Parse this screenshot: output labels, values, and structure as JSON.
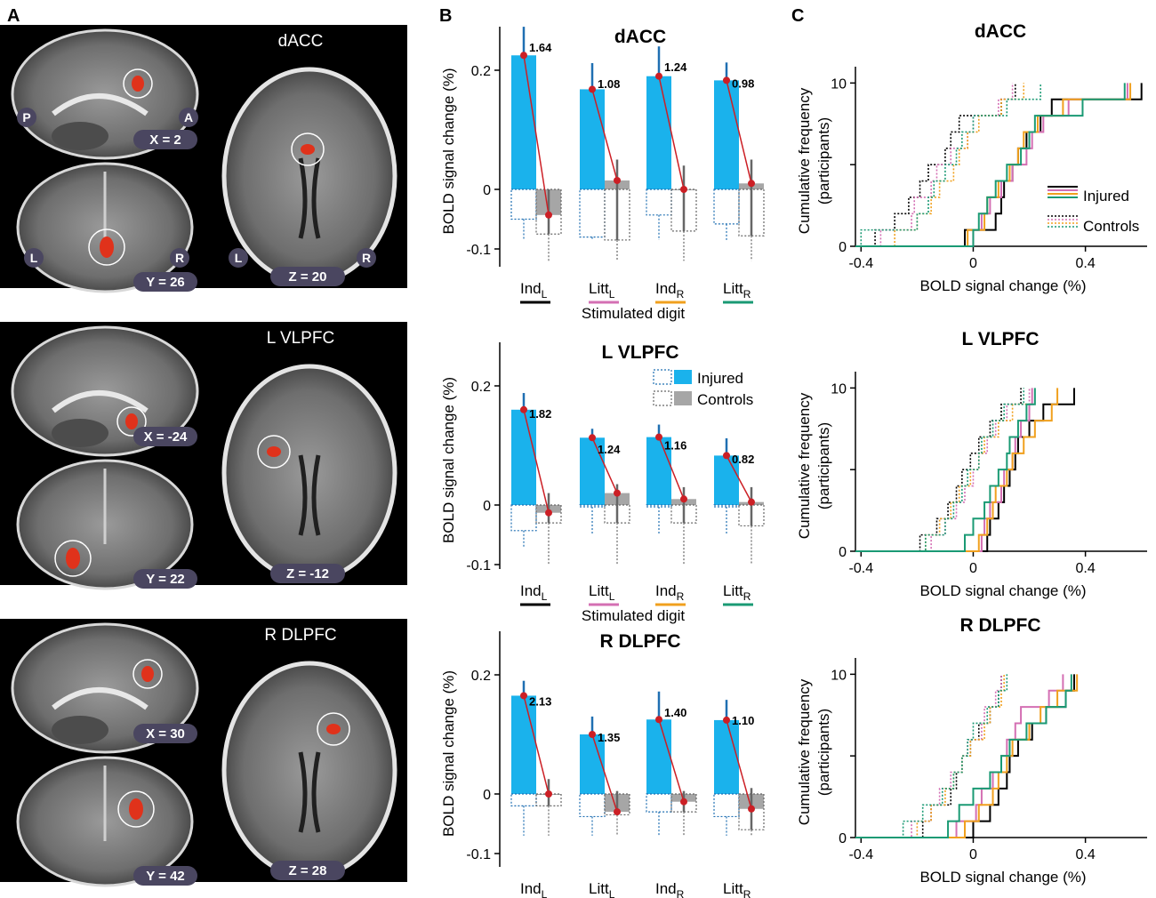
{
  "panel_letters": [
    "A",
    "B",
    "C"
  ],
  "colors": {
    "injured_bar": "#1ab2ec",
    "control_bar": "#a6a6a6",
    "mean_line": "#cc1f25",
    "err_injured": "#1f6fb2",
    "err_control": "#666666",
    "digit_IndL": "#000000",
    "digit_LittL": "#d46fb3",
    "digit_IndR": "#f0a01e",
    "digit_LittR": "#1a9a74",
    "brain_bg": "#000000",
    "activation": "#e0321b"
  },
  "panel_a": {
    "orientation": {
      "posterior": "P",
      "anterior": "A",
      "left": "L",
      "right": "R"
    },
    "regions": [
      {
        "name": "dACC",
        "sagittal_coord": "X = 2",
        "coronal_coord": "Y = 26",
        "axial_coord": "Z = 20"
      },
      {
        "name": "L VLPFC",
        "sagittal_coord": "X = -24",
        "coronal_coord": "Y = 22",
        "axial_coord": "Z = -12"
      },
      {
        "name": "R DLPFC",
        "sagittal_coord": "X = 30",
        "coronal_coord": "Y = 42",
        "axial_coord": "Z = 28"
      }
    ]
  },
  "chart_data": [
    {
      "panel": "B",
      "type": "bar",
      "title": "dACC",
      "ylabel": "BOLD signal change (%)",
      "xlabel": "Stimulated digit",
      "ylim": [
        -0.12,
        0.27
      ],
      "yticks": [
        -0.1,
        0,
        0.2
      ],
      "ytick_labels": [
        "-0.1",
        "0",
        "0.2"
      ],
      "categories": [
        {
          "base": "Ind",
          "sub": "L"
        },
        {
          "base": "Litt",
          "sub": "L"
        },
        {
          "base": "Ind",
          "sub": "R"
        },
        {
          "base": "Litt",
          "sub": "R"
        }
      ],
      "series": [
        {
          "name": "Injured",
          "values": [
            0.225,
            0.168,
            0.19,
            0.183
          ],
          "neg": [
            -0.05,
            -0.08,
            -0.043,
            -0.058
          ],
          "err_top": [
            0.273,
            0.212,
            0.24,
            0.213
          ],
          "err_bottom": [
            -0.085,
            -0.085,
            -0.085,
            -0.085
          ]
        },
        {
          "name": "Controls",
          "values": [
            -0.043,
            0.015,
            0.0,
            0.01
          ],
          "neg": [
            -0.075,
            -0.085,
            -0.07,
            -0.078
          ],
          "err_top": [
            0.0,
            0.05,
            0.04,
            0.05
          ],
          "err_bottom": [
            -0.12,
            -0.12,
            -0.12,
            -0.12
          ]
        }
      ],
      "mean_labels": [
        "1.64",
        "1.08",
        "1.24",
        "0.98"
      ]
    },
    {
      "panel": "B",
      "type": "bar",
      "title": "L VLPFC",
      "ylabel": "BOLD signal change (%)",
      "xlabel": "Stimulated digit",
      "ylim": [
        -0.12,
        0.27
      ],
      "yticks": [
        -0.1,
        0,
        0.2
      ],
      "ytick_labels": [
        "-0.1",
        "0",
        "0.2"
      ],
      "categories": [
        {
          "base": "Ind",
          "sub": "L"
        },
        {
          "base": "Litt",
          "sub": "L"
        },
        {
          "base": "Ind",
          "sub": "R"
        },
        {
          "base": "Litt",
          "sub": "R"
        }
      ],
      "series": [
        {
          "name": "Injured",
          "values": [
            0.16,
            0.113,
            0.114,
            0.083
          ],
          "neg": [
            -0.043,
            -0.003,
            -0.003,
            -0.003
          ],
          "err_top": [
            0.188,
            0.128,
            0.135,
            0.112
          ],
          "err_bottom": [
            -0.07,
            -0.05,
            -0.05,
            -0.05
          ]
        },
        {
          "name": "Controls",
          "values": [
            -0.013,
            0.02,
            0.01,
            0.005
          ],
          "neg": [
            -0.03,
            -0.03,
            -0.03,
            -0.035
          ],
          "err_top": [
            0.02,
            0.035,
            0.03,
            0.03
          ],
          "err_bottom": [
            -0.1,
            -0.1,
            -0.1,
            -0.1
          ]
        }
      ],
      "mean_labels": [
        "1.82",
        "1.24",
        "1.16",
        "0.82"
      ],
      "legend": [
        "Injured",
        "Controls"
      ]
    },
    {
      "panel": "B",
      "type": "bar",
      "title": "R DLPFC",
      "ylabel": "BOLD signal change (%)",
      "xlabel": "Stimulated digit",
      "ylim": [
        -0.12,
        0.27
      ],
      "yticks": [
        -0.1,
        0,
        0.2
      ],
      "ytick_labels": [
        "-0.1",
        "0",
        "0.2"
      ],
      "categories": [
        {
          "base": "Ind",
          "sub": "L"
        },
        {
          "base": "Litt",
          "sub": "L"
        },
        {
          "base": "Ind",
          "sub": "R"
        },
        {
          "base": "Litt",
          "sub": "R"
        }
      ],
      "series": [
        {
          "name": "Injured",
          "values": [
            0.165,
            0.1,
            0.125,
            0.124
          ],
          "neg": [
            -0.02,
            -0.038,
            -0.03,
            -0.038
          ],
          "err_top": [
            0.19,
            0.13,
            0.172,
            0.158
          ],
          "err_bottom": [
            -0.07,
            -0.07,
            -0.07,
            -0.07
          ]
        },
        {
          "name": "Controls",
          "values": [
            0.0,
            -0.03,
            -0.013,
            -0.025
          ],
          "neg": [
            -0.02,
            -0.035,
            -0.03,
            -0.06
          ],
          "err_top": [
            0.025,
            0.005,
            0.005,
            0.01
          ],
          "err_bottom": [
            -0.07,
            -0.07,
            -0.07,
            -0.07
          ]
        }
      ],
      "mean_labels": [
        "2.13",
        "1.35",
        "1.40",
        "1.10"
      ]
    },
    {
      "panel": "C",
      "type": "line",
      "title": "dACC",
      "ylabel_line1": "Cumulative frequency",
      "ylabel_line2": "(participants)",
      "xlabel": "BOLD signal change (%)",
      "xlim": [
        -0.42,
        0.62
      ],
      "ylim": [
        0,
        11
      ],
      "xticks": [
        -0.4,
        0,
        0.4
      ],
      "xtick_labels": [
        "-0.4",
        "0",
        "0.4"
      ],
      "yticks": [
        0,
        5,
        10
      ],
      "ytick_labels": [
        "0",
        "5",
        "10"
      ],
      "legend": [
        "Injured",
        "Controls"
      ],
      "injured": {
        "IndL": [
          -0.03,
          0.08,
          0.1,
          0.11,
          0.14,
          0.16,
          0.19,
          0.24,
          0.28,
          0.6
        ],
        "LittL": [
          0.0,
          0.03,
          0.06,
          0.1,
          0.14,
          0.19,
          0.21,
          0.25,
          0.34,
          0.55
        ],
        "IndR": [
          -0.02,
          0.04,
          0.05,
          0.09,
          0.13,
          0.16,
          0.18,
          0.23,
          0.32,
          0.56
        ],
        "LittR": [
          0.0,
          0.02,
          0.05,
          0.08,
          0.12,
          0.17,
          0.2,
          0.22,
          0.39,
          0.54
        ]
      },
      "controls": {
        "IndL": [
          -0.35,
          -0.28,
          -0.23,
          -0.19,
          -0.16,
          -0.1,
          -0.08,
          -0.05,
          0.1,
          0.15
        ],
        "LittL": [
          -0.33,
          -0.22,
          -0.21,
          -0.15,
          -0.13,
          -0.08,
          -0.02,
          0.0,
          0.09,
          0.14
        ],
        "IndR": [
          -0.28,
          -0.2,
          -0.15,
          -0.12,
          -0.07,
          -0.05,
          -0.02,
          0.02,
          0.1,
          0.18
        ],
        "LittR": [
          -0.4,
          -0.2,
          -0.16,
          -0.14,
          -0.1,
          -0.06,
          -0.04,
          0.0,
          0.12,
          0.24
        ]
      }
    },
    {
      "panel": "C",
      "type": "line",
      "title": "L VLPFC",
      "ylabel_line1": "Cumulative frequency",
      "ylabel_line2": "(participants)",
      "xlabel": "BOLD signal change (%)",
      "xlim": [
        -0.42,
        0.62
      ],
      "ylim": [
        0,
        11
      ],
      "xticks": [
        -0.4,
        0,
        0.4
      ],
      "xtick_labels": [
        "-0.4",
        "0",
        "0.4"
      ],
      "yticks": [
        0,
        5,
        10
      ],
      "ytick_labels": [
        "0",
        "5",
        "10"
      ],
      "injured": {
        "IndL": [
          0.05,
          0.06,
          0.09,
          0.11,
          0.13,
          0.15,
          0.16,
          0.2,
          0.25,
          0.36
        ],
        "LittL": [
          0.03,
          0.04,
          0.06,
          0.1,
          0.11,
          0.14,
          0.15,
          0.17,
          0.2,
          0.21
        ],
        "IndR": [
          0.02,
          0.05,
          0.07,
          0.08,
          0.12,
          0.14,
          0.18,
          0.22,
          0.28,
          0.3
        ],
        "LittR": [
          -0.03,
          0.0,
          0.04,
          0.06,
          0.09,
          0.12,
          0.13,
          0.16,
          0.19,
          0.22
        ]
      },
      "controls": {
        "IndL": [
          -0.19,
          -0.13,
          -0.09,
          -0.06,
          -0.04,
          -0.01,
          0.02,
          0.06,
          0.1,
          0.17
        ],
        "LittL": [
          -0.15,
          -0.1,
          -0.06,
          -0.03,
          0.0,
          0.02,
          0.05,
          0.08,
          0.12,
          0.2
        ],
        "IndR": [
          -0.17,
          -0.12,
          -0.08,
          -0.05,
          -0.01,
          0.02,
          0.04,
          0.09,
          0.14,
          0.21
        ],
        "LittR": [
          -0.17,
          -0.1,
          -0.07,
          -0.04,
          -0.02,
          0.02,
          0.03,
          0.07,
          0.11,
          0.18
        ]
      }
    },
    {
      "panel": "C",
      "type": "line",
      "title": "R DLPFC",
      "ylabel_line1": "Cumulative frequency",
      "ylabel_line2": "(participants)",
      "xlabel": "BOLD signal change (%)",
      "xlim": [
        -0.42,
        0.62
      ],
      "ylim": [
        0,
        11
      ],
      "xticks": [
        -0.4,
        0,
        0.4
      ],
      "xtick_labels": [
        "-0.4",
        "0",
        "0.4"
      ],
      "yticks": [
        0,
        5,
        10
      ],
      "ytick_labels": [
        "0",
        "5",
        "10"
      ],
      "injured": {
        "IndL": [
          0.0,
          0.06,
          0.09,
          0.12,
          0.13,
          0.16,
          0.21,
          0.26,
          0.33,
          0.36
        ],
        "LittL": [
          -0.06,
          0.01,
          0.03,
          0.07,
          0.1,
          0.12,
          0.15,
          0.17,
          0.27,
          0.32
        ],
        "IndR": [
          -0.03,
          0.02,
          0.07,
          0.09,
          0.12,
          0.14,
          0.2,
          0.24,
          0.3,
          0.37
        ],
        "LittR": [
          -0.09,
          -0.05,
          0.0,
          0.06,
          0.1,
          0.13,
          0.19,
          0.26,
          0.33,
          0.35
        ]
      },
      "controls": {
        "IndL": [
          -0.18,
          -0.15,
          -0.08,
          -0.06,
          -0.04,
          -0.01,
          0.02,
          0.06,
          0.1,
          0.09
        ],
        "LittL": [
          -0.22,
          -0.15,
          -0.12,
          -0.08,
          -0.04,
          -0.02,
          0.03,
          0.04,
          0.08,
          0.1
        ],
        "IndR": [
          -0.2,
          -0.15,
          -0.1,
          -0.07,
          -0.04,
          -0.01,
          0.04,
          0.06,
          0.1,
          0.11
        ],
        "LittR": [
          -0.25,
          -0.18,
          -0.11,
          -0.07,
          -0.04,
          -0.02,
          0.0,
          0.05,
          0.09,
          0.12
        ]
      }
    }
  ]
}
